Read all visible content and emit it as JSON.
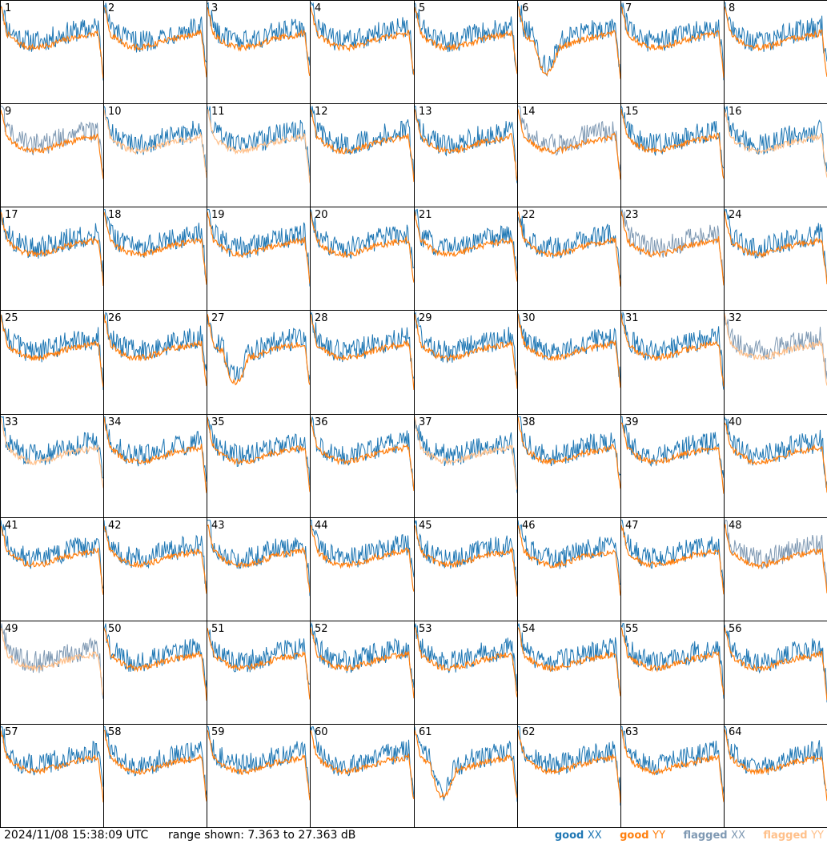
{
  "footer": {
    "timestamp": "2024/11/08 15:38:09 UTC",
    "range": "range shown: 7.363 to 27.363 dB"
  },
  "legend": [
    {
      "word": "good",
      "suffix": "XX",
      "color": "#1f77b4"
    },
    {
      "word": "good",
      "suffix": "YY",
      "color": "#ff7f0e"
    },
    {
      "word": "flagged",
      "suffix": "XX",
      "color": "#7f99b3"
    },
    {
      "word": "flagged",
      "suffix": "YY",
      "color": "#ffc08a"
    }
  ],
  "colors": {
    "good_xx": "#1f77b4",
    "good_yy": "#ff7f0e",
    "flagged_xx": "#7f99b3",
    "flagged_yy": "#ffc08a"
  },
  "chart_data": {
    "type": "line",
    "grid": "8x8 small multiples",
    "units": "dB",
    "ylim": [
      7.363,
      27.363
    ],
    "panels": [
      {
        "label": "1",
        "xx": "good",
        "yy": "good",
        "shape": "mid"
      },
      {
        "label": "2",
        "xx": "good",
        "yy": "good",
        "shape": "mid"
      },
      {
        "label": "3",
        "xx": "good",
        "yy": "good",
        "shape": "mid"
      },
      {
        "label": "4",
        "xx": "good",
        "yy": "good",
        "shape": "mid"
      },
      {
        "label": "5",
        "xx": "good",
        "yy": "good",
        "shape": "mid"
      },
      {
        "label": "6",
        "xx": "good",
        "yy": "good",
        "shape": "droop"
      },
      {
        "label": "7",
        "xx": "good",
        "yy": "good",
        "shape": "mid"
      },
      {
        "label": "8",
        "xx": "good",
        "yy": "good",
        "shape": "mid"
      },
      {
        "label": "9",
        "xx": "flagged",
        "yy": "good",
        "shape": "mid"
      },
      {
        "label": "10",
        "xx": "good",
        "yy": "flagged",
        "shape": "mid"
      },
      {
        "label": "11",
        "xx": "good",
        "yy": "flagged",
        "shape": "mid"
      },
      {
        "label": "12",
        "xx": "good",
        "yy": "good",
        "shape": "mid"
      },
      {
        "label": "13",
        "xx": "good",
        "yy": "good",
        "shape": "mid"
      },
      {
        "label": "14",
        "xx": "flagged",
        "yy": "good",
        "shape": "mid"
      },
      {
        "label": "15",
        "xx": "good",
        "yy": "good",
        "shape": "mid"
      },
      {
        "label": "16",
        "xx": "good",
        "yy": "flagged",
        "shape": "mid"
      },
      {
        "label": "17",
        "xx": "good",
        "yy": "good",
        "shape": "mid"
      },
      {
        "label": "18",
        "xx": "good",
        "yy": "good",
        "shape": "mid"
      },
      {
        "label": "19",
        "xx": "good",
        "yy": "good",
        "shape": "mid"
      },
      {
        "label": "20",
        "xx": "good",
        "yy": "good",
        "shape": "mid"
      },
      {
        "label": "21",
        "xx": "good",
        "yy": "good",
        "shape": "mid"
      },
      {
        "label": "22",
        "xx": "good",
        "yy": "good",
        "shape": "mid"
      },
      {
        "label": "23",
        "xx": "flagged",
        "yy": "good",
        "shape": "mid"
      },
      {
        "label": "24",
        "xx": "good",
        "yy": "good",
        "shape": "mid"
      },
      {
        "label": "25",
        "xx": "good",
        "yy": "good",
        "shape": "mid"
      },
      {
        "label": "26",
        "xx": "good",
        "yy": "good",
        "shape": "mid"
      },
      {
        "label": "27",
        "xx": "good",
        "yy": "good",
        "shape": "droop"
      },
      {
        "label": "28",
        "xx": "good",
        "yy": "good",
        "shape": "mid"
      },
      {
        "label": "29",
        "xx": "good",
        "yy": "good",
        "shape": "mid"
      },
      {
        "label": "30",
        "xx": "good",
        "yy": "good",
        "shape": "mid"
      },
      {
        "label": "31",
        "xx": "good",
        "yy": "good",
        "shape": "mid"
      },
      {
        "label": "32",
        "xx": "flagged",
        "yy": "flagged",
        "shape": "mid"
      },
      {
        "label": "33",
        "xx": "good",
        "yy": "flagged",
        "shape": "mid"
      },
      {
        "label": "34",
        "xx": "good",
        "yy": "good",
        "shape": "mid"
      },
      {
        "label": "35",
        "xx": "good",
        "yy": "good",
        "shape": "mid"
      },
      {
        "label": "36",
        "xx": "good",
        "yy": "good",
        "shape": "mid"
      },
      {
        "label": "37",
        "xx": "good",
        "yy": "flagged",
        "shape": "mid"
      },
      {
        "label": "38",
        "xx": "good",
        "yy": "good",
        "shape": "mid"
      },
      {
        "label": "39",
        "xx": "good",
        "yy": "good",
        "shape": "mid"
      },
      {
        "label": "40",
        "xx": "good",
        "yy": "good",
        "shape": "mid"
      },
      {
        "label": "41",
        "xx": "good",
        "yy": "good",
        "shape": "mid"
      },
      {
        "label": "42",
        "xx": "good",
        "yy": "good",
        "shape": "mid"
      },
      {
        "label": "43",
        "xx": "good",
        "yy": "good",
        "shape": "mid"
      },
      {
        "label": "44",
        "xx": "good",
        "yy": "good",
        "shape": "mid"
      },
      {
        "label": "45",
        "xx": "good",
        "yy": "good",
        "shape": "mid"
      },
      {
        "label": "46",
        "xx": "good",
        "yy": "good",
        "shape": "mid"
      },
      {
        "label": "47",
        "xx": "good",
        "yy": "good",
        "shape": "mid"
      },
      {
        "label": "48",
        "xx": "flagged",
        "yy": "good",
        "shape": "mid"
      },
      {
        "label": "49",
        "xx": "flagged",
        "yy": "flagged",
        "shape": "mid"
      },
      {
        "label": "50",
        "xx": "good",
        "yy": "good",
        "shape": "mid"
      },
      {
        "label": "51",
        "xx": "good",
        "yy": "good",
        "shape": "mid"
      },
      {
        "label": "52",
        "xx": "good",
        "yy": "good",
        "shape": "mid"
      },
      {
        "label": "53",
        "xx": "good",
        "yy": "good",
        "shape": "mid"
      },
      {
        "label": "54",
        "xx": "good",
        "yy": "good",
        "shape": "mid"
      },
      {
        "label": "55",
        "xx": "good",
        "yy": "good",
        "shape": "mid"
      },
      {
        "label": "56",
        "xx": "good",
        "yy": "good",
        "shape": "mid"
      },
      {
        "label": "57",
        "xx": "good",
        "yy": "good",
        "shape": "mid"
      },
      {
        "label": "58",
        "xx": "good",
        "yy": "good",
        "shape": "mid"
      },
      {
        "label": "59",
        "xx": "good",
        "yy": "good",
        "shape": "mid"
      },
      {
        "label": "60",
        "xx": "good",
        "yy": "good",
        "shape": "mid"
      },
      {
        "label": "61",
        "xx": "good",
        "yy": "good",
        "shape": "droop"
      },
      {
        "label": "62",
        "xx": "good",
        "yy": "good",
        "shape": "mid"
      },
      {
        "label": "63",
        "xx": "good",
        "yy": "good",
        "shape": "mid"
      },
      {
        "label": "64",
        "xx": "good",
        "yy": "good",
        "shape": "mid"
      }
    ]
  }
}
